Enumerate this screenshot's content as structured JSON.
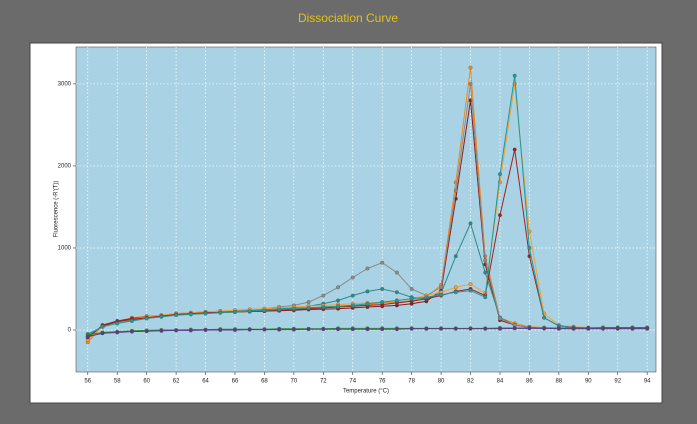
{
  "chart_data": {
    "type": "line",
    "title": "Dissociation Curve",
    "x_label": "Temperature (°C)",
    "y_label": "Fluorescence (-R'(T))",
    "x": [
      56,
      57,
      58,
      59,
      60,
      61,
      62,
      63,
      64,
      65,
      66,
      67,
      68,
      69,
      70,
      71,
      72,
      73,
      74,
      75,
      76,
      77,
      78,
      79,
      80,
      81,
      82,
      83,
      84,
      85,
      86,
      87,
      88,
      89,
      90,
      91,
      92,
      93,
      94
    ],
    "series": [
      {
        "color": "#f0891c",
        "values": [
          -150,
          50,
          100,
          150,
          170,
          180,
          200,
          210,
          220,
          230,
          230,
          240,
          240,
          250,
          260,
          270,
          280,
          290,
          300,
          310,
          330,
          340,
          360,
          400,
          550,
          1800,
          3200,
          900,
          150,
          80,
          40,
          30,
          20,
          20,
          20,
          20,
          20,
          20,
          20
        ]
      },
      {
        "color": "#8b1a1a",
        "values": [
          -100,
          60,
          110,
          140,
          160,
          170,
          190,
          200,
          210,
          215,
          220,
          225,
          230,
          235,
          240,
          250,
          255,
          260,
          270,
          280,
          290,
          300,
          320,
          350,
          480,
          1600,
          2800,
          800,
          120,
          60,
          30,
          20,
          15,
          15,
          15,
          15,
          15,
          15,
          15
        ]
      },
      {
        "color": "#2a8a8a",
        "values": [
          -50,
          40,
          90,
          120,
          150,
          170,
          190,
          200,
          210,
          220,
          230,
          240,
          250,
          260,
          270,
          290,
          320,
          360,
          420,
          470,
          500,
          460,
          400,
          380,
          450,
          900,
          1300,
          700,
          150,
          60,
          30,
          20,
          20,
          20,
          20,
          20,
          20,
          20,
          20
        ]
      },
      {
        "color": "#8a8a8a",
        "values": [
          -80,
          50,
          100,
          130,
          160,
          180,
          200,
          210,
          220,
          230,
          240,
          250,
          260,
          280,
          300,
          340,
          420,
          520,
          640,
          750,
          820,
          700,
          500,
          420,
          520,
          1700,
          3000,
          850,
          140,
          60,
          30,
          20,
          20,
          20,
          20,
          20,
          20,
          20,
          20
        ]
      },
      {
        "color": "#f5a033",
        "values": [
          -120,
          40,
          90,
          130,
          160,
          180,
          200,
          210,
          220,
          230,
          240,
          250,
          260,
          270,
          280,
          290,
          300,
          310,
          320,
          330,
          340,
          360,
          380,
          420,
          460,
          520,
          560,
          450,
          1800,
          3000,
          1200,
          200,
          60,
          40,
          30,
          30,
          30,
          30,
          30
        ]
      },
      {
        "color": "#a0201e",
        "values": [
          -90,
          50,
          100,
          130,
          150,
          170,
          190,
          200,
          210,
          215,
          220,
          225,
          230,
          240,
          250,
          260,
          270,
          280,
          290,
          300,
          310,
          330,
          350,
          380,
          420,
          470,
          500,
          420,
          1400,
          2200,
          900,
          150,
          50,
          30,
          25,
          25,
          25,
          25,
          25
        ]
      },
      {
        "color": "#1f9a9a",
        "values": [
          -60,
          40,
          80,
          110,
          140,
          160,
          180,
          190,
          200,
          210,
          220,
          230,
          240,
          250,
          260,
          270,
          280,
          290,
          300,
          320,
          340,
          360,
          380,
          400,
          430,
          460,
          480,
          400,
          1900,
          3100,
          1000,
          150,
          50,
          30,
          25,
          25,
          25,
          25,
          25
        ]
      },
      {
        "color": "#2e8b2e",
        "values": [
          -60,
          -30,
          -20,
          -10,
          -5,
          0,
          0,
          5,
          5,
          10,
          10,
          10,
          10,
          15,
          15,
          15,
          15,
          20,
          20,
          20,
          20,
          20,
          20,
          20,
          20,
          20,
          20,
          20,
          25,
          25,
          25,
          25,
          25,
          25,
          25,
          30,
          30,
          30,
          30
        ]
      },
      {
        "color": "#5a3a8a",
        "values": [
          -80,
          -40,
          -30,
          -20,
          -15,
          -10,
          -5,
          -5,
          0,
          0,
          0,
          5,
          5,
          5,
          5,
          10,
          10,
          10,
          10,
          10,
          10,
          10,
          15,
          15,
          15,
          15,
          15,
          15,
          15,
          20,
          20,
          20,
          20,
          20,
          20,
          20,
          20,
          20,
          20
        ]
      }
    ],
    "xlim": [
      55.2,
      94.6
    ],
    "ylim": [
      -512,
      3450
    ],
    "xticks": [
      56,
      58,
      60,
      62,
      64,
      66,
      68,
      70,
      72,
      74,
      76,
      78,
      80,
      82,
      84,
      86,
      88,
      90,
      92,
      94
    ],
    "yticks": [
      0,
      1000,
      2000,
      3000
    ],
    "grid": true
  }
}
